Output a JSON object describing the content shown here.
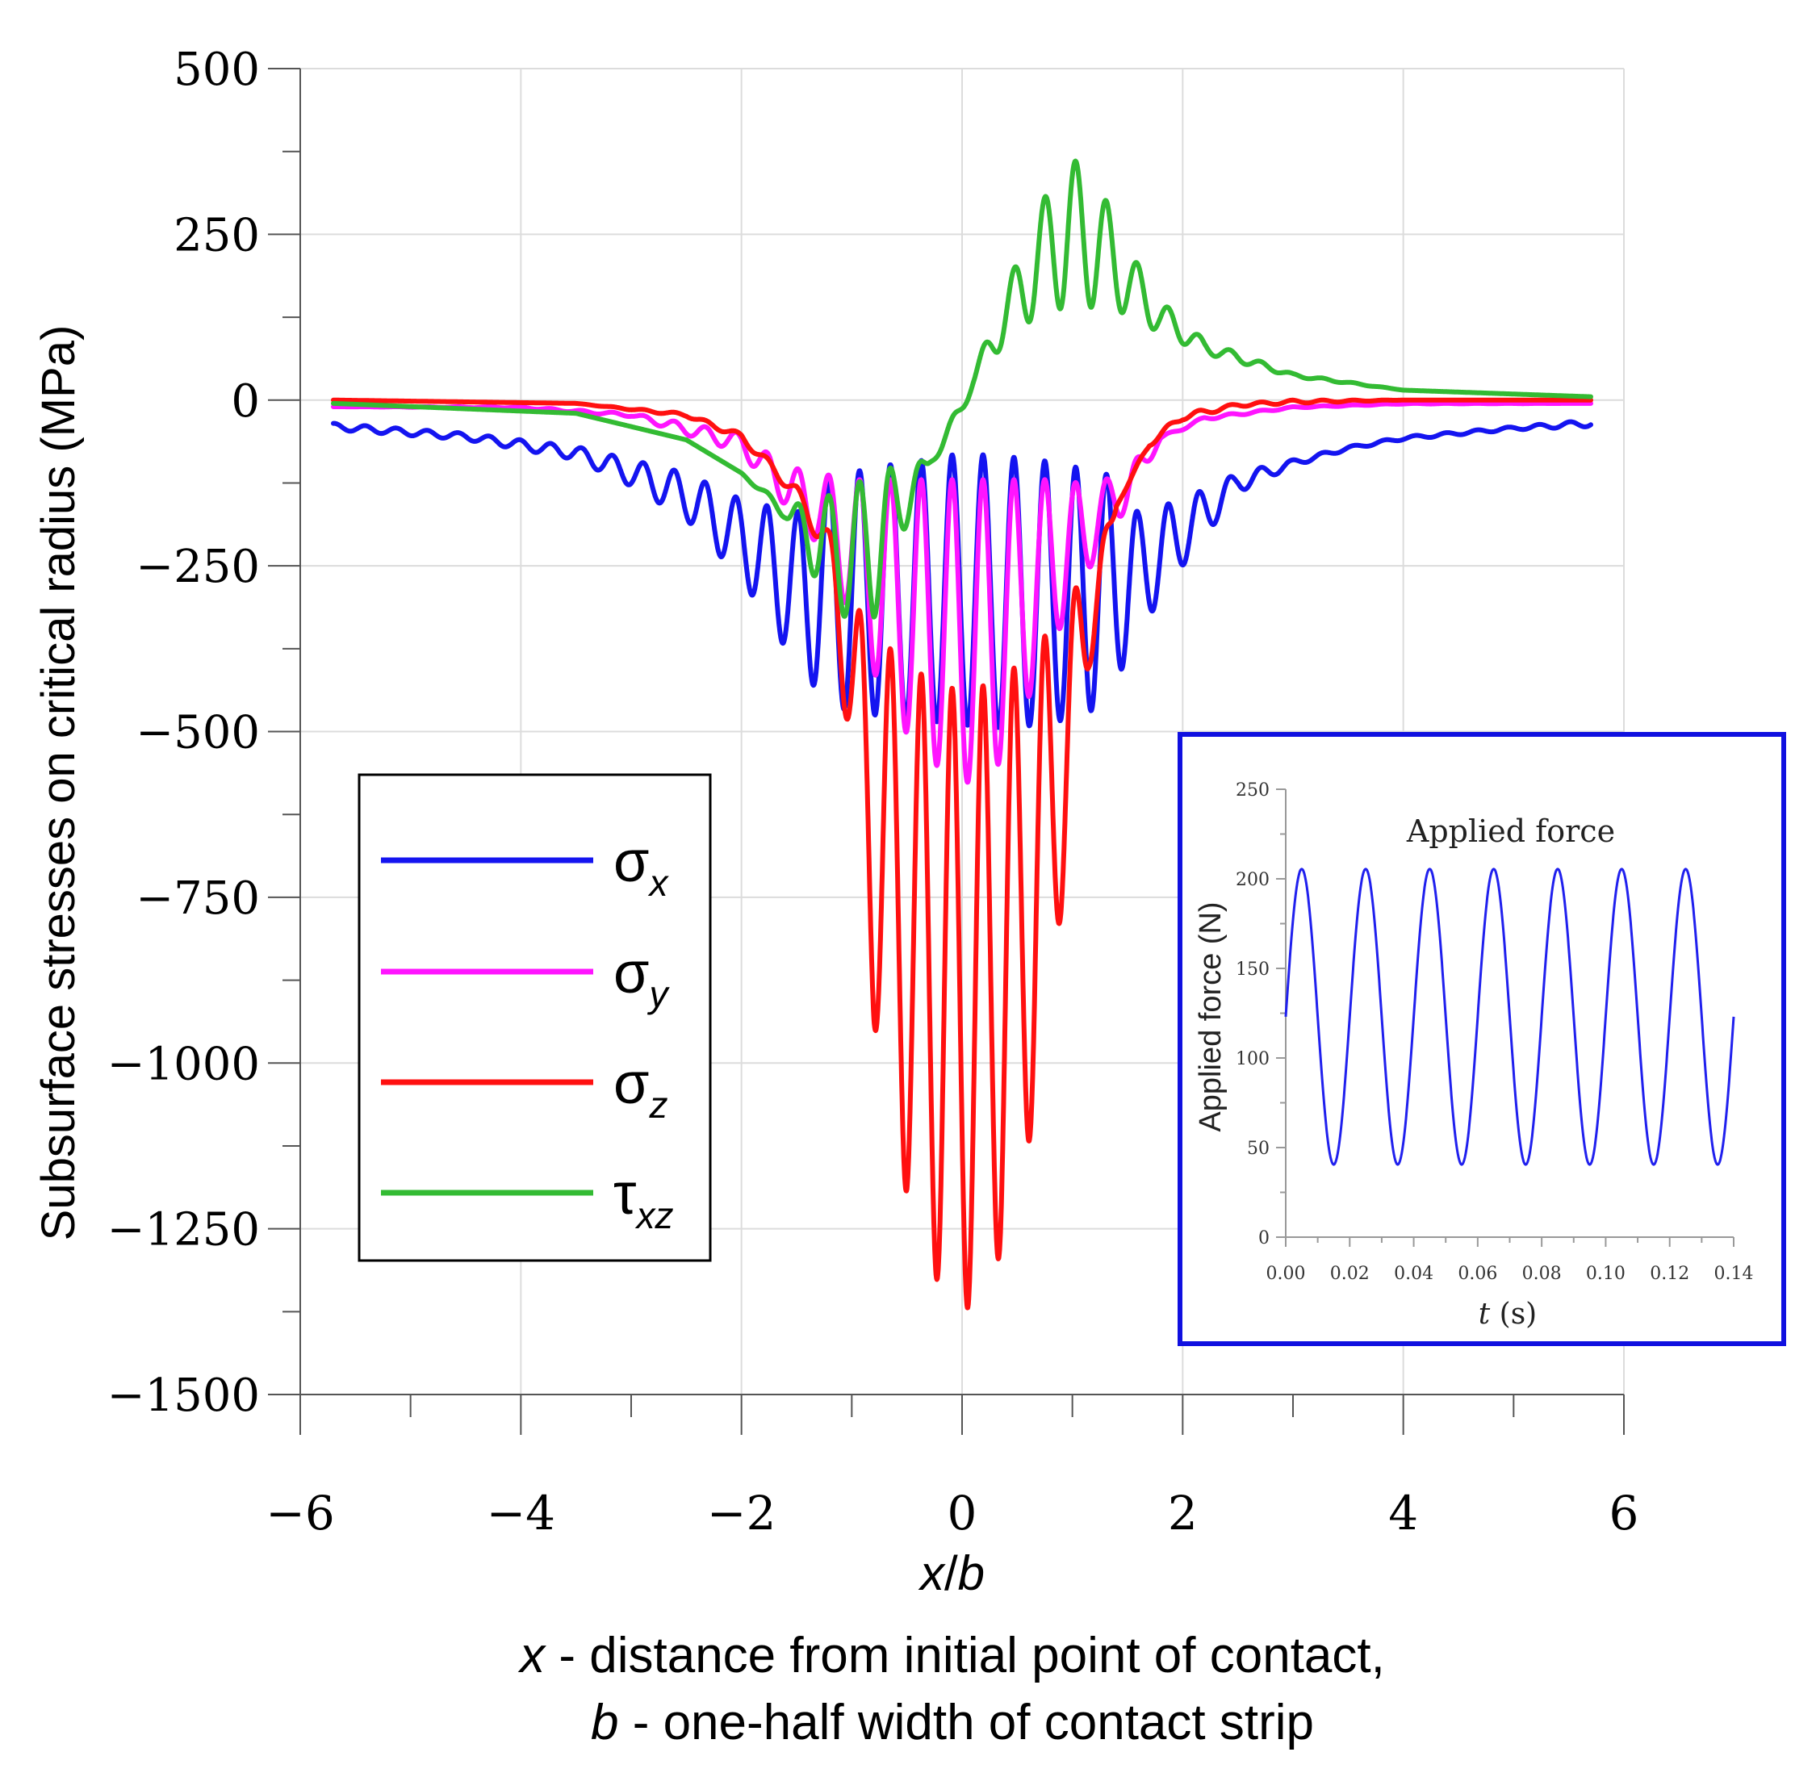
{
  "chart_data": [
    {
      "type": "line",
      "title": "",
      "xlabel": "x/b",
      "xlabel_var1": "x",
      "xlabel_sep": "/",
      "xlabel_var2": "b",
      "caption_line1_var": "x",
      "caption_line1_rest": " - distance from initial point of contact,",
      "caption_line2_var": "b",
      "caption_line2_rest": " - one-half width of contact strip",
      "ylabel": "Subsurface stresses on critical radius (MPa)",
      "xlim": [
        -6,
        6
      ],
      "ylim": [
        -1500,
        500
      ],
      "x_ticks": [
        -6,
        -4,
        -2,
        0,
        2,
        4,
        6
      ],
      "x_tick_labels": [
        "−6",
        "−4",
        "−2",
        "0",
        "2",
        "4",
        "6"
      ],
      "y_ticks": [
        500,
        250,
        0,
        -250,
        -500,
        -750,
        -1000,
        -1250,
        -1500
      ],
      "y_tick_labels": [
        "500",
        "250",
        "0",
        "−250",
        "−500",
        "−750",
        "−1000",
        "−1250",
        "−1500"
      ],
      "x_range_plotted": [
        -5.7,
        5.7
      ],
      "ripple_period": 0.28,
      "legend_position": "left",
      "series": [
        {
          "name": "σx",
          "symbol": "σ",
          "subscript": "x",
          "color": "#1414f0",
          "x": [
            -5.7,
            -4.5,
            -3.5,
            -3.0,
            -2.5,
            -2.0,
            -1.5,
            -1.2,
            -1.0,
            -0.8,
            -0.5,
            0.0,
            0.4,
            0.7,
            1.0,
            1.3,
            1.6,
            2.0,
            2.5,
            3.0,
            3.5,
            4.0,
            5.0,
            5.7
          ],
          "envelope_upper": [
            -35,
            -50,
            -70,
            -90,
            -110,
            -150,
            -170,
            -120,
            -110,
            -100,
            -95,
            -80,
            -85,
            -90,
            -100,
            -110,
            -170,
            -150,
            -110,
            -90,
            -70,
            -55,
            -40,
            -30
          ],
          "envelope_lower": [
            -45,
            -60,
            -90,
            -130,
            -180,
            -270,
            -400,
            -460,
            -470,
            -475,
            -480,
            -490,
            -495,
            -490,
            -480,
            -460,
            -350,
            -250,
            -140,
            -100,
            -75,
            -60,
            -45,
            -40
          ]
        },
        {
          "name": "σy",
          "symbol": "σ",
          "subscript": "y",
          "color": "#ff14ff",
          "x": [
            -5.7,
            -4.0,
            -3.0,
            -2.0,
            -1.6,
            -1.3,
            -1.0,
            -0.7,
            -0.4,
            0.0,
            0.3,
            0.6,
            0.9,
            1.2,
            1.5,
            1.8,
            2.2,
            3.0,
            4.0,
            5.7
          ],
          "envelope_upper": [
            -10,
            -10,
            -20,
            -50,
            -100,
            -110,
            -120,
            -120,
            -120,
            -120,
            -120,
            -120,
            -120,
            -130,
            -100,
            -55,
            -25,
            -10,
            -5,
            -5
          ],
          "envelope_lower": [
            -10,
            -12,
            -25,
            -80,
            -160,
            -220,
            -330,
            -450,
            -530,
            -580,
            -560,
            -450,
            -340,
            -240,
            -160,
            -60,
            -30,
            -12,
            -6,
            -5
          ]
        },
        {
          "name": "σz",
          "symbol": "σ",
          "subscript": "z",
          "color": "#ff1010",
          "x": [
            -5.7,
            -3.5,
            -2.5,
            -2.0,
            -1.5,
            -1.2,
            -1.0,
            -0.8,
            -0.5,
            -0.2,
            0.05,
            0.35,
            0.65,
            0.9,
            1.15,
            1.4,
            1.7,
            2.0,
            2.5,
            3.0,
            4.0,
            5.7
          ],
          "envelope_upper": [
            0,
            -5,
            -20,
            -50,
            -130,
            -200,
            -300,
            -350,
            -400,
            -430,
            -440,
            -420,
            -380,
            -320,
            -250,
            -160,
            -60,
            -20,
            -5,
            0,
            0,
            0
          ],
          "envelope_lower": [
            0,
            -5,
            -25,
            -60,
            -150,
            -250,
            -570,
            -940,
            -1200,
            -1340,
            -1370,
            -1290,
            -1090,
            -770,
            -410,
            -160,
            -70,
            -30,
            -10,
            -5,
            0,
            0
          ]
        },
        {
          "name": "τxz",
          "symbol": "τ",
          "subscript": "xz",
          "color": "#33bb33",
          "x": [
            -5.7,
            -3.5,
            -2.5,
            -2.0,
            -1.6,
            -1.3,
            -1.0,
            -0.8,
            -0.6,
            -0.3,
            -0.1,
            0.1,
            0.4,
            0.7,
            0.95,
            1.2,
            1.5,
            1.8,
            2.2,
            3.0,
            4.0,
            5.7
          ],
          "envelope_upper": [
            -5,
            -20,
            -60,
            -110,
            -160,
            -150,
            -130,
            -110,
            -100,
            -90,
            -30,
            40,
            170,
            290,
            370,
            340,
            230,
            150,
            90,
            40,
            15,
            5
          ],
          "envelope_lower": [
            -5,
            -20,
            -60,
            -110,
            -180,
            -280,
            -340,
            -330,
            -230,
            -100,
            -60,
            20,
            90,
            130,
            140,
            140,
            130,
            100,
            70,
            35,
            15,
            5
          ]
        }
      ]
    },
    {
      "type": "line",
      "title": "Applied force",
      "xlabel": "t (s)",
      "xlabel_var": "t",
      "xlabel_unit": " (s)",
      "ylabel": "Applied force (N)",
      "xlim": [
        0,
        0.14
      ],
      "ylim": [
        0,
        250
      ],
      "x_ticks": [
        0,
        0.02,
        0.04,
        0.06,
        0.08,
        0.1,
        0.12,
        0.14
      ],
      "x_tick_labels": [
        "0.00",
        "0.02",
        "0.04",
        "0.06",
        "0.08",
        "0.10",
        "0.12",
        "0.14"
      ],
      "y_ticks": [
        0,
        50,
        100,
        150,
        200,
        250
      ],
      "y_tick_labels": [
        "0",
        "50",
        "100",
        "150",
        "200",
        "250"
      ],
      "series": [
        {
          "name": "Applied force",
          "color": "#2020ee",
          "function": "F = 123 + 82.5 * sin(2*pi*t/0.02)",
          "mean": 123,
          "amplitude": 82.5,
          "period": 0.02,
          "t_range": [
            0,
            0.14
          ],
          "max": 205,
          "min": 41
        }
      ]
    }
  ],
  "colors": {
    "frame": "#000000",
    "grid": "#dcdcdc",
    "axis": "#555555",
    "inset_border": "#1010e0"
  }
}
